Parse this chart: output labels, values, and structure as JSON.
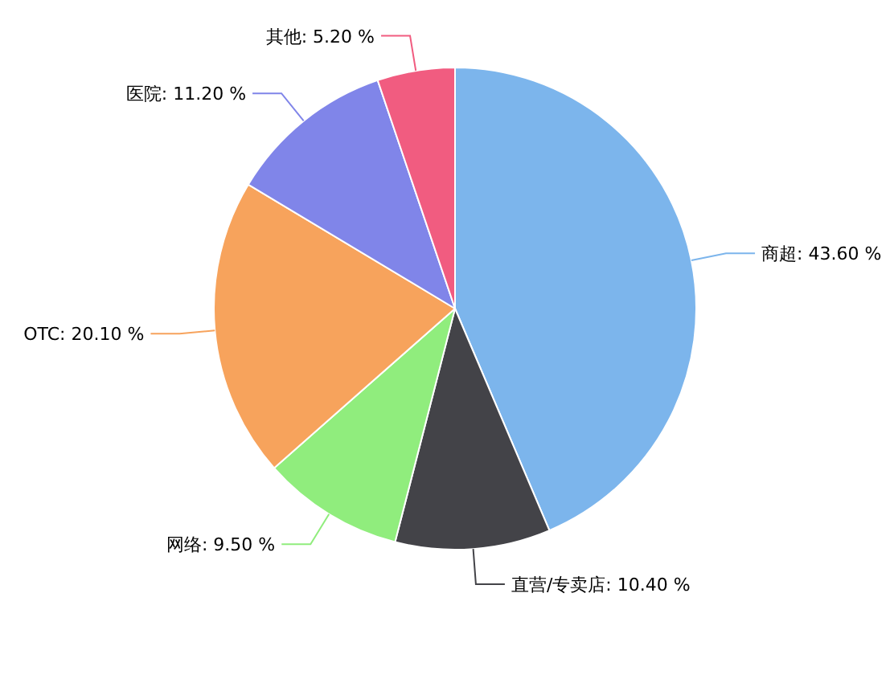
{
  "chart_data": {
    "type": "pie",
    "categories": [
      "商超",
      "直营/专卖店",
      "网络",
      "OTC",
      "医院",
      "其他"
    ],
    "values": [
      43.6,
      10.4,
      9.5,
      20.1,
      11.2,
      5.2
    ],
    "value_labels": [
      "43.60 %",
      "10.40 %",
      "9.50 %",
      "20.10 %",
      "11.20 %",
      "5.20 %"
    ],
    "colors": [
      "#7cb5ec",
      "#434348",
      "#90ed7d",
      "#f7a35c",
      "#8085e9",
      "#f15c80"
    ],
    "legend": false
  }
}
